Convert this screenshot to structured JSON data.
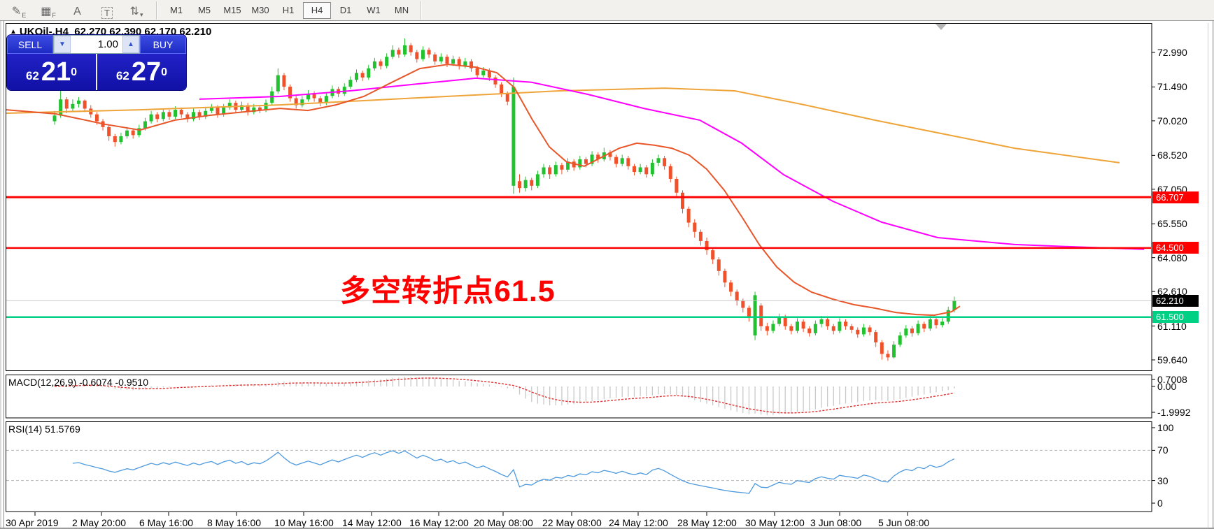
{
  "toolbar": {
    "tools": [
      {
        "id": "draw-lines",
        "glyph": "✎",
        "sub": "E"
      },
      {
        "id": "grid",
        "glyph": "▦",
        "sub": "F"
      },
      {
        "id": "text",
        "glyph": "A",
        "sub": ""
      },
      {
        "id": "text-label",
        "glyph": "T",
        "sub": "",
        "boxed": true
      },
      {
        "id": "arrows",
        "glyph": "⇅",
        "sub": "▾"
      }
    ],
    "timeframes": [
      "M1",
      "M5",
      "M15",
      "M30",
      "H1",
      "H4",
      "D1",
      "W1",
      "MN"
    ],
    "active_timeframe": "H4"
  },
  "chart": {
    "symbol": "UKOil-,H4",
    "quote": "62.270 62.390 62.170 62.210",
    "collapse_arrow": "▲"
  },
  "trade_panel": {
    "sell_label": "SELL",
    "buy_label": "BUY",
    "volume": "1.00",
    "sell_prefix": "62",
    "sell_big": "21",
    "sell_sup": "0",
    "buy_prefix": "62",
    "buy_big": "27",
    "buy_sup": "0"
  },
  "annotation": {
    "text": "多空转折点61.5",
    "color": "#ff0000"
  },
  "price_axis": {
    "labels": [
      [
        "72.990",
        72.99
      ],
      [
        "71.490",
        71.49
      ],
      [
        "70.020",
        70.02
      ],
      [
        "68.520",
        68.52
      ],
      [
        "67.050",
        67.05
      ],
      [
        "65.550",
        65.55
      ],
      [
        "64.080",
        64.08
      ],
      [
        "62.610",
        62.61
      ],
      [
        "61.110",
        61.11
      ],
      [
        "59.640",
        59.64
      ]
    ],
    "badges": [
      {
        "text": "66.707",
        "price": 66.707,
        "bg": "#ff0000",
        "name": "level-badge-66707"
      },
      {
        "text": "64.500",
        "price": 64.5,
        "bg": "#ff0000",
        "name": "level-badge-64500"
      },
      {
        "text": "62.210",
        "price": 62.21,
        "bg": "#000000",
        "name": "last-price-badge"
      },
      {
        "text": "61.500",
        "price": 61.5,
        "bg": "#00d084",
        "name": "level-badge-61500"
      }
    ]
  },
  "time_axis": {
    "labels": [
      [
        "30 Apr 2019",
        8
      ],
      [
        "2 May 20:00",
        103
      ],
      [
        "6 May 16:00",
        199
      ],
      [
        "8 May 16:00",
        296
      ],
      [
        "10 May 16:00",
        392
      ],
      [
        "14 May 12:00",
        489
      ],
      [
        "16 May 12:00",
        585
      ],
      [
        "20 May 08:00",
        677
      ],
      [
        "22 May 08:00",
        775
      ],
      [
        "24 May 12:00",
        870
      ],
      [
        "28 May 12:00",
        968
      ],
      [
        "30 May 12:00",
        1065
      ],
      [
        "3 Jun 08:00",
        1158
      ],
      [
        "5 Jun 08:00",
        1255
      ]
    ]
  },
  "macd": {
    "label": "MACD(12,26,9) -0.6074 -0.9510",
    "params": [
      12,
      26,
      9
    ],
    "axis": [
      {
        "text": "0.7008",
        "v": 0.7008
      },
      {
        "text": "0.00",
        "v": 0
      },
      {
        "text": "-1.9992",
        "v": -1.9992
      }
    ]
  },
  "rsi": {
    "label": "RSI(14) 51.5769",
    "period": 14,
    "levels": [
      70,
      30
    ],
    "axis": [
      {
        "text": "100",
        "v": 100
      },
      {
        "text": "70",
        "v": 70
      },
      {
        "text": "30",
        "v": 30
      },
      {
        "text": "0",
        "v": 0
      }
    ]
  },
  "colors": {
    "up": "#22c12f",
    "down": "#f0512a",
    "ma_fast": "#e8572a",
    "ma_gold": "#efa43a",
    "ma_magenta": "#ff00ff",
    "rsi": "#4e9ade",
    "macd_signal": "#e03030",
    "macd_hist": "#c9c9c9",
    "accent_red": "#ff0000",
    "accent_green": "#00d084",
    "last_price_line": "#c8c8c8"
  },
  "chart_data": {
    "type": "candlestick",
    "symbol": "UKOil-",
    "timeframe": "H4",
    "levels": [
      {
        "price": 66.707,
        "color": "#ff0000",
        "width": 3
      },
      {
        "price": 64.5,
        "color": "#ff0000",
        "width": 2.5
      },
      {
        "price": 61.5,
        "color": "#00d084",
        "width": 2.5
      },
      {
        "price": 62.21,
        "color": "#c8c8c8",
        "width": 1
      }
    ],
    "ohlc": [
      [
        70.0,
        70.45,
        69.85,
        70.25
      ],
      [
        70.25,
        71.35,
        70.15,
        70.95
      ],
      [
        70.95,
        71.05,
        70.35,
        70.55
      ],
      [
        70.55,
        70.95,
        70.45,
        70.75
      ],
      [
        70.75,
        71.05,
        70.6,
        70.9
      ],
      [
        70.9,
        70.95,
        70.4,
        70.55
      ],
      [
        70.55,
        70.7,
        70.15,
        70.3
      ],
      [
        70.3,
        70.4,
        69.85,
        70.0
      ],
      [
        70.0,
        70.1,
        69.6,
        69.75
      ],
      [
        69.75,
        69.85,
        69.15,
        69.35
      ],
      [
        69.35,
        69.45,
        68.9,
        69.1
      ],
      [
        69.1,
        69.5,
        69.0,
        69.35
      ],
      [
        69.35,
        69.75,
        69.25,
        69.6
      ],
      [
        69.6,
        69.7,
        69.25,
        69.4
      ],
      [
        69.4,
        69.85,
        69.3,
        69.7
      ],
      [
        69.7,
        70.15,
        69.6,
        70.0
      ],
      [
        70.0,
        70.45,
        69.9,
        70.3
      ],
      [
        70.3,
        70.4,
        69.95,
        70.1
      ],
      [
        70.1,
        70.55,
        70.0,
        70.4
      ],
      [
        70.4,
        70.5,
        70.05,
        70.2
      ],
      [
        70.2,
        70.65,
        70.1,
        70.5
      ],
      [
        70.5,
        70.6,
        70.15,
        70.3
      ],
      [
        70.3,
        70.4,
        69.95,
        70.1
      ],
      [
        70.1,
        70.55,
        70.0,
        70.4
      ],
      [
        70.4,
        70.5,
        70.05,
        70.2
      ],
      [
        70.2,
        70.6,
        70.1,
        70.45
      ],
      [
        70.45,
        70.75,
        70.35,
        70.6
      ],
      [
        70.6,
        70.7,
        70.15,
        70.3
      ],
      [
        70.3,
        70.75,
        70.2,
        70.6
      ],
      [
        70.6,
        70.95,
        70.5,
        70.8
      ],
      [
        70.8,
        70.9,
        70.35,
        70.5
      ],
      [
        70.5,
        70.85,
        70.4,
        70.7
      ],
      [
        70.7,
        70.8,
        70.25,
        70.4
      ],
      [
        70.4,
        70.75,
        70.3,
        70.6
      ],
      [
        70.6,
        70.7,
        70.35,
        70.5
      ],
      [
        70.5,
        70.95,
        70.4,
        70.8
      ],
      [
        70.8,
        71.5,
        70.7,
        71.3
      ],
      [
        71.3,
        72.3,
        71.2,
        72.0
      ],
      [
        72.0,
        72.1,
        71.35,
        71.5
      ],
      [
        71.5,
        71.6,
        70.85,
        71.0
      ],
      [
        71.0,
        71.1,
        70.55,
        70.7
      ],
      [
        70.7,
        71.1,
        70.6,
        70.95
      ],
      [
        70.95,
        71.35,
        70.85,
        71.2
      ],
      [
        71.2,
        71.3,
        70.85,
        71.0
      ],
      [
        71.0,
        71.1,
        70.65,
        70.8
      ],
      [
        70.8,
        71.25,
        70.7,
        71.1
      ],
      [
        71.1,
        71.55,
        71.0,
        71.4
      ],
      [
        71.4,
        71.5,
        71.05,
        71.2
      ],
      [
        71.2,
        71.65,
        71.1,
        71.5
      ],
      [
        71.5,
        71.95,
        71.4,
        71.8
      ],
      [
        71.8,
        72.25,
        71.7,
        72.1
      ],
      [
        72.1,
        72.2,
        71.75,
        71.9
      ],
      [
        71.9,
        72.45,
        71.8,
        72.3
      ],
      [
        72.3,
        72.75,
        72.2,
        72.6
      ],
      [
        72.6,
        72.7,
        72.25,
        72.4
      ],
      [
        72.4,
        72.95,
        72.3,
        72.8
      ],
      [
        72.8,
        73.3,
        72.7,
        73.1
      ],
      [
        73.1,
        73.2,
        72.75,
        72.9
      ],
      [
        72.9,
        73.6,
        72.8,
        73.3
      ],
      [
        73.3,
        73.4,
        72.85,
        73.0
      ],
      [
        73.0,
        73.1,
        72.55,
        72.7
      ],
      [
        72.7,
        73.25,
        72.6,
        73.1
      ],
      [
        73.1,
        73.2,
        72.75,
        72.9
      ],
      [
        72.9,
        73.0,
        72.45,
        72.6
      ],
      [
        72.6,
        72.95,
        72.5,
        72.8
      ],
      [
        72.8,
        72.9,
        72.35,
        72.5
      ],
      [
        72.5,
        72.85,
        72.4,
        72.7
      ],
      [
        72.7,
        72.8,
        72.25,
        72.4
      ],
      [
        72.4,
        72.75,
        72.3,
        72.6
      ],
      [
        72.6,
        72.7,
        72.15,
        72.3
      ],
      [
        72.3,
        72.4,
        71.85,
        72.0
      ],
      [
        72.0,
        72.35,
        71.9,
        72.2
      ],
      [
        72.2,
        72.3,
        71.75,
        71.9
      ],
      [
        71.9,
        72.0,
        71.45,
        71.6
      ],
      [
        71.6,
        71.7,
        71.05,
        71.2
      ],
      [
        71.2,
        71.3,
        70.7,
        70.85
      ],
      [
        67.2,
        71.9,
        66.85,
        71.5
      ],
      [
        67.4,
        67.7,
        66.9,
        67.1
      ],
      [
        67.1,
        67.6,
        66.95,
        67.45
      ],
      [
        67.45,
        67.55,
        67.0,
        67.2
      ],
      [
        67.2,
        67.85,
        67.1,
        67.7
      ],
      [
        67.7,
        68.15,
        67.55,
        68.0
      ],
      [
        68.0,
        68.1,
        67.5,
        67.7
      ],
      [
        67.7,
        68.25,
        67.6,
        68.1
      ],
      [
        68.1,
        68.2,
        67.7,
        67.9
      ],
      [
        67.9,
        68.4,
        67.8,
        68.25
      ],
      [
        68.25,
        68.35,
        67.85,
        68.0
      ],
      [
        68.0,
        68.5,
        67.9,
        68.35
      ],
      [
        68.35,
        68.45,
        68.0,
        68.15
      ],
      [
        68.15,
        68.7,
        68.05,
        68.55
      ],
      [
        68.55,
        68.65,
        68.2,
        68.35
      ],
      [
        68.35,
        68.85,
        68.25,
        68.65
      ],
      [
        68.65,
        68.75,
        68.3,
        68.45
      ],
      [
        68.45,
        68.55,
        68.0,
        68.15
      ],
      [
        68.15,
        68.55,
        68.05,
        68.4
      ],
      [
        68.4,
        68.5,
        67.9,
        68.05
      ],
      [
        68.05,
        68.15,
        67.65,
        67.8
      ],
      [
        67.8,
        68.15,
        67.7,
        68.0
      ],
      [
        68.0,
        68.1,
        67.55,
        67.7
      ],
      [
        67.7,
        68.35,
        67.6,
        68.2
      ],
      [
        68.2,
        68.55,
        68.05,
        68.4
      ],
      [
        68.4,
        68.5,
        67.9,
        68.05
      ],
      [
        68.05,
        68.15,
        67.35,
        67.5
      ],
      [
        67.5,
        67.6,
        66.7,
        66.9
      ],
      [
        66.9,
        67.0,
        66.0,
        66.2
      ],
      [
        66.2,
        66.3,
        65.4,
        65.6
      ],
      [
        65.6,
        65.75,
        64.95,
        65.2
      ],
      [
        65.2,
        65.3,
        64.6,
        64.8
      ],
      [
        64.8,
        64.95,
        64.2,
        64.4
      ],
      [
        64.4,
        64.5,
        63.8,
        64.0
      ],
      [
        64.0,
        64.1,
        63.3,
        63.5
      ],
      [
        63.5,
        63.6,
        62.8,
        63.0
      ],
      [
        63.0,
        63.1,
        62.4,
        62.6
      ],
      [
        62.6,
        62.7,
        62.0,
        62.2
      ],
      [
        62.2,
        62.3,
        61.7,
        61.9
      ],
      [
        61.9,
        62.0,
        61.3,
        61.5
      ],
      [
        60.7,
        62.6,
        60.5,
        62.45
      ],
      [
        62.0,
        62.1,
        60.9,
        61.1
      ],
      [
        61.1,
        61.25,
        60.7,
        60.9
      ],
      [
        60.9,
        61.35,
        60.8,
        61.2
      ],
      [
        61.2,
        61.65,
        61.1,
        61.5
      ],
      [
        61.5,
        61.6,
        60.95,
        61.1
      ],
      [
        61.1,
        61.2,
        60.75,
        60.9
      ],
      [
        60.9,
        61.45,
        60.8,
        61.3
      ],
      [
        61.3,
        61.4,
        60.85,
        61.0
      ],
      [
        61.0,
        61.1,
        60.65,
        60.8
      ],
      [
        60.8,
        61.35,
        60.7,
        61.2
      ],
      [
        61.2,
        61.55,
        61.05,
        61.4
      ],
      [
        61.4,
        61.5,
        60.95,
        61.1
      ],
      [
        61.1,
        61.2,
        60.75,
        60.9
      ],
      [
        60.9,
        61.45,
        60.8,
        61.3
      ],
      [
        61.3,
        61.4,
        60.95,
        61.1
      ],
      [
        61.1,
        61.2,
        60.8,
        60.95
      ],
      [
        60.95,
        61.05,
        60.6,
        60.75
      ],
      [
        60.75,
        61.2,
        60.65,
        61.05
      ],
      [
        61.05,
        61.15,
        60.7,
        60.85
      ],
      [
        60.85,
        60.95,
        60.2,
        60.4
      ],
      [
        60.4,
        60.5,
        59.65,
        59.9
      ],
      [
        59.9,
        60.05,
        59.6,
        59.75
      ],
      [
        59.75,
        60.45,
        59.7,
        60.3
      ],
      [
        60.3,
        60.85,
        60.2,
        60.7
      ],
      [
        60.7,
        61.15,
        60.6,
        61.0
      ],
      [
        61.0,
        61.1,
        60.65,
        60.8
      ],
      [
        60.8,
        61.35,
        60.7,
        61.2
      ],
      [
        61.2,
        61.3,
        60.85,
        61.0
      ],
      [
        61.0,
        61.55,
        60.9,
        61.4
      ],
      [
        61.4,
        61.5,
        61.0,
        61.15
      ],
      [
        61.15,
        61.45,
        61.05,
        61.3
      ],
      [
        61.3,
        61.95,
        61.2,
        61.8
      ],
      [
        61.8,
        62.39,
        61.7,
        62.21
      ]
    ],
    "ma_gold": [
      [
        8,
        70.35
      ],
      [
        200,
        70.5
      ],
      [
        400,
        70.71
      ],
      [
        600,
        71.02
      ],
      [
        800,
        71.32
      ],
      [
        950,
        71.44
      ],
      [
        1050,
        71.32
      ],
      [
        1150,
        70.71
      ],
      [
        1250,
        70.05
      ],
      [
        1350,
        69.44
      ],
      [
        1450,
        68.83
      ],
      [
        1550,
        68.41
      ],
      [
        1600,
        68.2
      ]
    ],
    "ma_magenta": [
      [
        285,
        70.96
      ],
      [
        400,
        71.08
      ],
      [
        500,
        71.32
      ],
      [
        600,
        71.63
      ],
      [
        680,
        71.87
      ],
      [
        760,
        71.69
      ],
      [
        840,
        71.17
      ],
      [
        920,
        70.56
      ],
      [
        1000,
        70.05
      ],
      [
        1060,
        69.05
      ],
      [
        1120,
        67.68
      ],
      [
        1190,
        66.53
      ],
      [
        1260,
        65.62
      ],
      [
        1340,
        64.95
      ],
      [
        1450,
        64.65
      ],
      [
        1550,
        64.53
      ],
      [
        1635,
        64.44
      ]
    ],
    "ma_fast": [
      [
        8,
        70.5
      ],
      [
        80,
        70.32
      ],
      [
        150,
        69.87
      ],
      [
        200,
        69.62
      ],
      [
        250,
        70.05
      ],
      [
        300,
        70.26
      ],
      [
        350,
        70.41
      ],
      [
        400,
        70.56
      ],
      [
        440,
        70.47
      ],
      [
        480,
        70.71
      ],
      [
        520,
        71.08
      ],
      [
        560,
        71.69
      ],
      [
        600,
        72.29
      ],
      [
        640,
        72.47
      ],
      [
        680,
        72.35
      ],
      [
        710,
        72.11
      ],
      [
        735,
        71.47
      ],
      [
        760,
        70.11
      ],
      [
        785,
        68.89
      ],
      [
        810,
        68.23
      ],
      [
        835,
        68.05
      ],
      [
        860,
        68.44
      ],
      [
        885,
        68.83
      ],
      [
        910,
        69.05
      ],
      [
        935,
        68.96
      ],
      [
        960,
        68.83
      ],
      [
        985,
        68.53
      ],
      [
        1010,
        67.92
      ],
      [
        1035,
        67.01
      ],
      [
        1060,
        65.86
      ],
      [
        1085,
        64.65
      ],
      [
        1110,
        63.68
      ],
      [
        1135,
        63.01
      ],
      [
        1160,
        62.58
      ],
      [
        1190,
        62.28
      ],
      [
        1220,
        62.04
      ],
      [
        1250,
        61.89
      ],
      [
        1280,
        61.7
      ],
      [
        1310,
        61.61
      ],
      [
        1335,
        61.58
      ],
      [
        1360,
        61.73
      ],
      [
        1372,
        61.97
      ]
    ]
  }
}
